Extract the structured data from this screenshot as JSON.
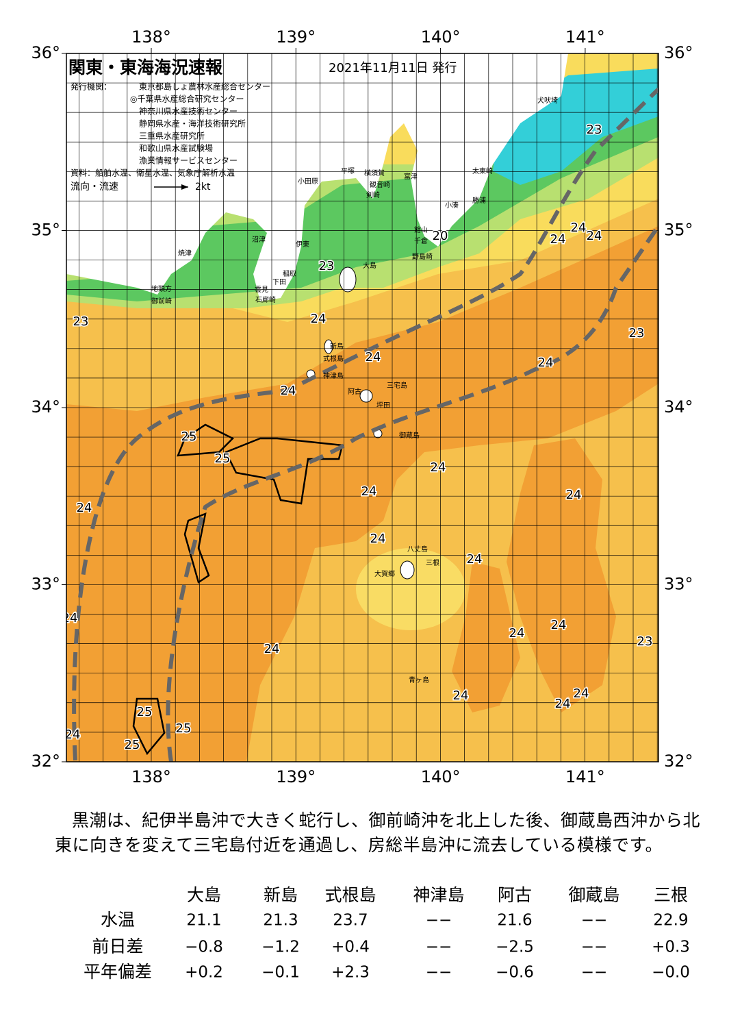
{
  "header": {
    "title": "関東・東海海況速報",
    "date": "2021年11月11日 発行",
    "issuer_label": "発行機関：",
    "issuers": [
      "東京都島しょ農林水産総合センター",
      "◎千葉県水産総合研究センター",
      "神奈川県水産技術センター",
      "静岡県水産・海洋技術研究所",
      "三重県水産研究所",
      "和歌山県水産試験場",
      "漁業情報サービスセンター"
    ],
    "source": "資料：船舶水温、衛星水温、気象庁解析水温",
    "legend_label": "流向・流速",
    "legend_speed": "2kt"
  },
  "map": {
    "lon_ticks": [
      {
        "value": 138,
        "label": "138°"
      },
      {
        "value": 139,
        "label": "139°"
      },
      {
        "value": 140,
        "label": "140°"
      },
      {
        "value": 141,
        "label": "141°"
      }
    ],
    "lat_ticks": [
      {
        "value": 32,
        "label": "32°"
      },
      {
        "value": 33,
        "label": "33°"
      },
      {
        "value": 34,
        "label": "34°"
      },
      {
        "value": 35,
        "label": "35°"
      },
      {
        "value": 36,
        "label": "36°"
      }
    ],
    "places": [
      "犬吠埼",
      "太東崎",
      "勝浦",
      "小湊",
      "館山",
      "千倉",
      "野島崎",
      "富津",
      "横須賀",
      "観音崎",
      "剣崎",
      "平塚",
      "小田原",
      "沼津",
      "伊東",
      "稲取",
      "下田",
      "雲見",
      "石廊崎",
      "焼津",
      "地頭方",
      "御前崎",
      "大島",
      "新島",
      "式根島",
      "神津島",
      "三宅島",
      "阿古",
      "坪田",
      "御蔵島",
      "八丈島",
      "三根",
      "大賀郷",
      "青ヶ島"
    ],
    "isotherm_labels": [
      "23",
      "24",
      "24",
      "24",
      "20",
      "23",
      "24",
      "23",
      "23",
      "24",
      "24",
      "24",
      "25",
      "25",
      "24",
      "24",
      "24",
      "24",
      "24",
      "24",
      "24",
      "24",
      "24",
      "23",
      "24",
      "24",
      "24",
      "24",
      "25",
      "25",
      "25",
      "24"
    ]
  },
  "paragraph": "黒潮は、紀伊半島沖で大きく蛇行し、御前崎沖を北上した後、御蔵島西沖から北東に向きを変えて三宅島付近を通過し、房総半島沖に流去している模様です。",
  "table": {
    "columns": [
      "大島",
      "新島",
      "式根島",
      "神津島",
      "阿古",
      "御蔵島",
      "三根"
    ],
    "rows": [
      {
        "label": "水温",
        "cells": [
          "21.1",
          "21.3",
          "23.7",
          "−−",
          "21.6",
          "−−",
          "22.9"
        ]
      },
      {
        "label": "前日差",
        "cells": [
          "−0.8",
          "−1.2",
          "+0.4",
          "−−",
          "−2.5",
          "−−",
          "+0.3"
        ]
      },
      {
        "label": "平年偏差",
        "cells": [
          "+0.2",
          "−0.1",
          "+2.3",
          "−−",
          "−0.6",
          "−−",
          "−0.0"
        ]
      }
    ]
  }
}
